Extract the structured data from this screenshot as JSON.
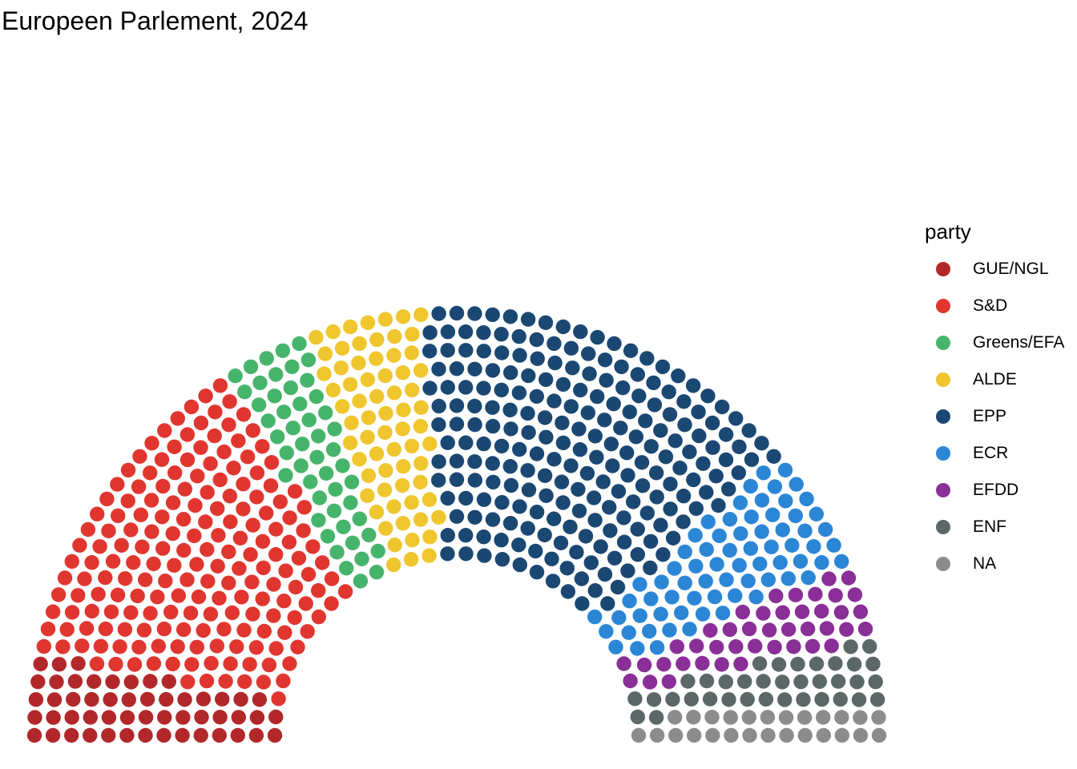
{
  "chart_data": {
    "type": "parliament",
    "title": "Europeen Parlement, 2024",
    "legend": {
      "title": "party",
      "position": "right"
    },
    "total_seats": 751,
    "rows": 14,
    "series": [
      {
        "name": "GUE/NGL",
        "seats": 52,
        "color": "#B2282A"
      },
      {
        "name": "S&D",
        "seats": 187,
        "color": "#E0362F"
      },
      {
        "name": "Greens/EFA",
        "seats": 50,
        "color": "#47B46B"
      },
      {
        "name": "ALDE",
        "seats": 67,
        "color": "#F0C62E"
      },
      {
        "name": "EPP",
        "seats": 221,
        "color": "#1B4873"
      },
      {
        "name": "ECR",
        "seats": 70,
        "color": "#2B86D6"
      },
      {
        "name": "EFDD",
        "seats": 42,
        "color": "#8A2F97"
      },
      {
        "name": "ENF",
        "seats": 36,
        "color": "#5C6868"
      },
      {
        "name": "NA",
        "seats": 26,
        "color": "#8C8C8C"
      }
    ]
  }
}
